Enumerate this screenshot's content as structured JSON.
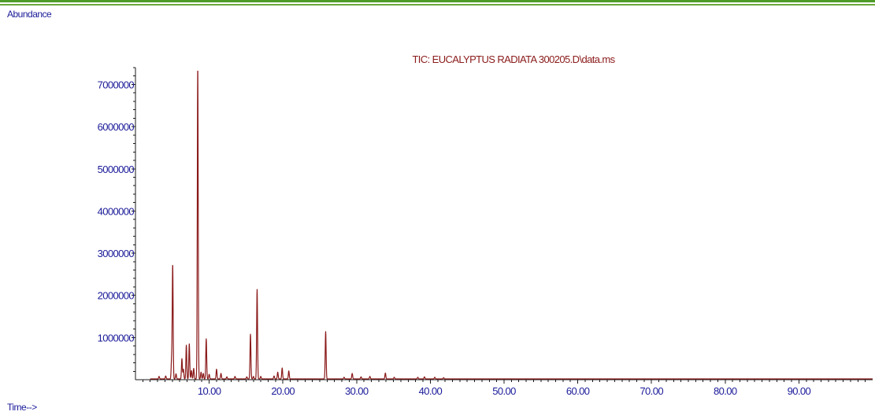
{
  "header": {
    "y_caption": "Abundance",
    "x_caption": "Time-->"
  },
  "colors": {
    "trace": "#8b1a1a",
    "title": "#8b1a1a",
    "axis": "#1a1a1a",
    "tick_label": "#1a1a99",
    "accent_band": "#4f9b29"
  },
  "chart_data": {
    "type": "line",
    "title": "TIC: EUCALYPTUS RADIATA 300205.D\\data.ms",
    "xlabel": "Time-->",
    "ylabel": "Abundance",
    "xlim": [
      0.0,
      100.0
    ],
    "ylim": [
      0,
      7400000
    ],
    "x_ticks": [
      10,
      20,
      30,
      40,
      50,
      60,
      70,
      80,
      90
    ],
    "x_tick_labels": [
      "10.00",
      "20.00",
      "30.00",
      "40.00",
      "50.00",
      "60.00",
      "70.00",
      "80.00",
      "90.00"
    ],
    "y_ticks": [
      1000000,
      2000000,
      3000000,
      4000000,
      5000000,
      6000000,
      7000000
    ],
    "y_tick_labels": [
      "1000000",
      "2000000",
      "3000000",
      "4000000",
      "5000000",
      "6000000",
      "7000000"
    ],
    "grid": false,
    "series": [
      {
        "peaks": [
          {
            "x": 3.2,
            "y": 60000
          },
          {
            "x": 4.1,
            "y": 70000
          },
          {
            "x": 4.9,
            "y": 450000
          },
          {
            "x": 5.05,
            "y": 2700000
          },
          {
            "x": 5.5,
            "y": 120000
          },
          {
            "x": 6.3,
            "y": 480000
          },
          {
            "x": 6.5,
            "y": 230000
          },
          {
            "x": 6.9,
            "y": 800000
          },
          {
            "x": 7.3,
            "y": 830000
          },
          {
            "x": 7.6,
            "y": 200000
          },
          {
            "x": 7.9,
            "y": 250000
          },
          {
            "x": 8.45,
            "y": 7400000
          },
          {
            "x": 8.9,
            "y": 160000
          },
          {
            "x": 9.2,
            "y": 130000
          },
          {
            "x": 9.6,
            "y": 950000
          },
          {
            "x": 10.0,
            "y": 110000
          },
          {
            "x": 11.0,
            "y": 230000
          },
          {
            "x": 11.6,
            "y": 130000
          },
          {
            "x": 12.4,
            "y": 50000
          },
          {
            "x": 13.5,
            "y": 60000
          },
          {
            "x": 15.1,
            "y": 50000
          },
          {
            "x": 15.6,
            "y": 1060000
          },
          {
            "x": 16.0,
            "y": 60000
          },
          {
            "x": 16.5,
            "y": 2120000
          },
          {
            "x": 17.0,
            "y": 60000
          },
          {
            "x": 18.8,
            "y": 70000
          },
          {
            "x": 19.3,
            "y": 160000
          },
          {
            "x": 19.9,
            "y": 260000
          },
          {
            "x": 20.8,
            "y": 190000
          },
          {
            "x": 25.8,
            "y": 1120000
          },
          {
            "x": 28.3,
            "y": 40000
          },
          {
            "x": 29.4,
            "y": 130000
          },
          {
            "x": 30.6,
            "y": 50000
          },
          {
            "x": 31.8,
            "y": 60000
          },
          {
            "x": 33.9,
            "y": 140000
          },
          {
            "x": 35.1,
            "y": 40000
          },
          {
            "x": 38.3,
            "y": 40000
          },
          {
            "x": 39.2,
            "y": 50000
          },
          {
            "x": 40.6,
            "y": 40000
          },
          {
            "x": 41.8,
            "y": 30000
          }
        ]
      }
    ]
  }
}
